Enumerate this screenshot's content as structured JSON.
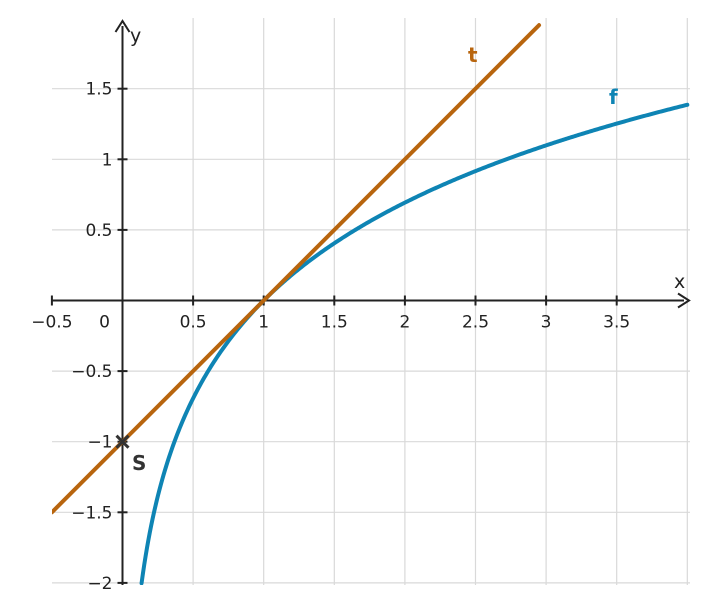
{
  "chart_data": {
    "type": "line",
    "title": "",
    "xlabel": "x",
    "ylabel": "y",
    "xlim": [
      -0.5,
      4.0
    ],
    "ylim": [
      -2.0,
      1.95
    ],
    "grid": true,
    "x_ticks": [
      {
        "value": -0.5,
        "label": "−0.5"
      },
      {
        "value": 0,
        "label": "0"
      },
      {
        "value": 0.5,
        "label": "0.5"
      },
      {
        "value": 1,
        "label": "1"
      },
      {
        "value": 1.5,
        "label": "1.5"
      },
      {
        "value": 2,
        "label": "2"
      },
      {
        "value": 2.5,
        "label": "2.5"
      },
      {
        "value": 3,
        "label": "3"
      },
      {
        "value": 3.5,
        "label": "3.5"
      }
    ],
    "y_ticks": [
      {
        "value": 1.5,
        "label": "1.5"
      },
      {
        "value": 1,
        "label": "1"
      },
      {
        "value": 0.5,
        "label": "0.5"
      },
      {
        "value": -0.5,
        "label": "−0.5"
      },
      {
        "value": -1,
        "label": "−1"
      },
      {
        "value": -1.5,
        "label": "−1.5"
      },
      {
        "value": -2,
        "label": "−2"
      }
    ],
    "series": [
      {
        "name": "f",
        "color": "#0e84b4",
        "x": [
          0.135,
          0.15,
          0.2,
          0.25,
          0.3,
          0.4,
          0.5,
          0.6,
          0.7,
          0.8,
          0.9,
          1.0,
          1.25,
          1.5,
          1.75,
          2.0,
          2.5,
          3.0,
          3.5,
          4.0
        ],
        "y": [
          -2.0,
          -1.9,
          -1.61,
          -1.39,
          -1.2,
          -0.92,
          -0.69,
          -0.51,
          -0.36,
          -0.22,
          -0.11,
          0.0,
          0.22,
          0.41,
          0.56,
          0.69,
          0.92,
          1.1,
          1.25,
          1.39
        ]
      },
      {
        "name": "t",
        "color": "#b8650e",
        "x": [
          -0.5,
          2.95
        ],
        "y": [
          -1.5,
          1.95
        ]
      }
    ],
    "points": [
      {
        "name": "S",
        "x": 0,
        "y": -1
      }
    ]
  }
}
